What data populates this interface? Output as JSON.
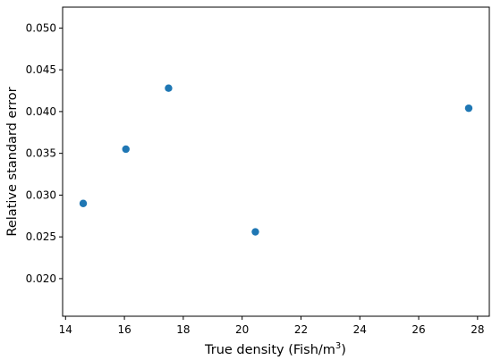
{
  "chart_data": {
    "type": "scatter",
    "xlabel": "True density (Fish/m",
    "xlabel_sup": "3",
    "xlabel_close": ")",
    "ylabel": "Relative standard error",
    "xlim": [
      13.9,
      28.4
    ],
    "ylim": [
      0.0155,
      0.0525
    ],
    "xticks": [
      14,
      16,
      18,
      20,
      22,
      24,
      26,
      28
    ],
    "yticks": [
      0.02,
      0.025,
      0.03,
      0.035,
      0.04,
      0.045,
      0.05
    ],
    "ytick_labels": [
      "0.020",
      "0.025",
      "0.030",
      "0.035",
      "0.040",
      "0.045",
      "0.050"
    ],
    "grid": false,
    "marker_color": "#1f77b4",
    "points": [
      {
        "x": 14.6,
        "y": 0.029
      },
      {
        "x": 16.05,
        "y": 0.0355
      },
      {
        "x": 17.5,
        "y": 0.0428
      },
      {
        "x": 20.45,
        "y": 0.0256
      },
      {
        "x": 27.7,
        "y": 0.0404
      }
    ]
  }
}
